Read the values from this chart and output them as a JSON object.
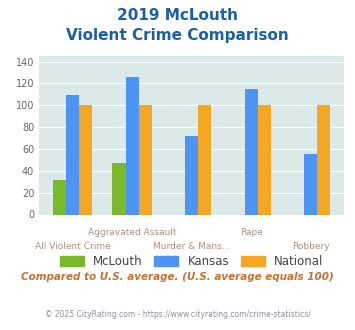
{
  "title_line1": "2019 McLouth",
  "title_line2": "Violent Crime Comparison",
  "categories": [
    "All Violent Crime",
    "Aggravated Assault",
    "Murder & Mans...",
    "Rape",
    "Robbery"
  ],
  "mclouth": [
    32,
    47,
    0,
    0,
    0
  ],
  "kansas": [
    109,
    126,
    72,
    115,
    55
  ],
  "national": [
    100,
    100,
    100,
    100,
    100
  ],
  "mclouth_has_bar": [
    true,
    true,
    false,
    false,
    false
  ],
  "color_mclouth": "#7aba2a",
  "color_kansas": "#4d94f5",
  "color_national": "#f5a623",
  "ylim": [
    0,
    145
  ],
  "yticks": [
    0,
    20,
    40,
    60,
    80,
    100,
    120,
    140
  ],
  "bg_color": "#dce9e9",
  "footnote1": "Compared to U.S. average. (U.S. average equals 100)",
  "footnote2": "© 2025 CityRating.com - https://www.cityrating.com/crime-statistics/",
  "title_color": "#1a5fa8",
  "footnote1_color": "#c87030",
  "footnote2_color": "#9090a8",
  "xticklabel_color": "#b09080",
  "bar_width": 0.22
}
